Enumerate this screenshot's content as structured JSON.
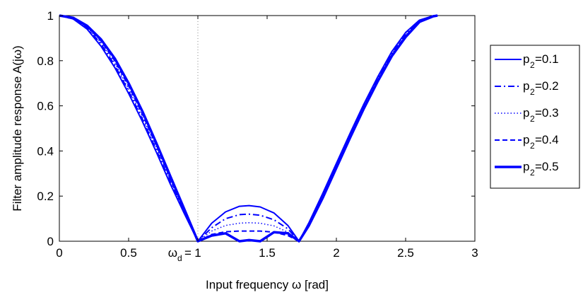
{
  "chart_data": {
    "type": "line",
    "xlabel": "Input frequency ω [rad]",
    "ylabel": "Filter amplitude response A(jω)",
    "xlim": [
      0,
      3
    ],
    "ylim": [
      0,
      1
    ],
    "xticks": [
      "0",
      "0.5",
      "1",
      "1.5",
      "2",
      "2.5",
      "3"
    ],
    "yticks": [
      "0",
      "0.2",
      "0.4",
      "0.6",
      "0.8",
      "1"
    ],
    "grid": false,
    "legend_position": "outside-right",
    "annotations": [
      {
        "text": "ω",
        "subscript": "d",
        "suffix": "=",
        "x": 1,
        "label_for_tick": "1"
      }
    ],
    "reference_line": {
      "x": 1,
      "style": "dotted"
    },
    "color": "#0000ff",
    "series": [
      {
        "name": "p2=0.1",
        "legend_main": "p",
        "legend_sub": "2",
        "legend_suffix": "=0.1",
        "style": "solid",
        "width": 2,
        "x": [
          0,
          0.1,
          0.2,
          0.3,
          0.4,
          0.5,
          0.6,
          0.7,
          0.8,
          0.9,
          1.0,
          1.1,
          1.2,
          1.3,
          1.37,
          1.45,
          1.55,
          1.65,
          1.73,
          1.8,
          1.9,
          2.0,
          2.1,
          2.2,
          2.3,
          2.4,
          2.5,
          2.6,
          2.7,
          2.73
        ],
        "y": [
          1.0,
          0.985,
          0.94,
          0.865,
          0.77,
          0.655,
          0.53,
          0.395,
          0.255,
          0.125,
          0.0,
          0.08,
          0.13,
          0.155,
          0.158,
          0.152,
          0.125,
          0.07,
          0.0,
          0.08,
          0.21,
          0.345,
          0.48,
          0.61,
          0.73,
          0.84,
          0.925,
          0.98,
          0.999,
          1.0
        ]
      },
      {
        "name": "p2=0.2",
        "legend_main": "p",
        "legend_sub": "2",
        "legend_suffix": "=0.2",
        "style": "dashdot",
        "width": 2,
        "x": [
          0,
          0.1,
          0.2,
          0.3,
          0.4,
          0.5,
          0.6,
          0.7,
          0.8,
          0.9,
          1.0,
          1.1,
          1.2,
          1.3,
          1.37,
          1.45,
          1.55,
          1.65,
          1.73,
          1.8,
          1.9,
          2.0,
          2.1,
          2.2,
          2.3,
          2.4,
          2.5,
          2.6,
          2.7,
          2.73
        ],
        "y": [
          1.0,
          0.985,
          0.945,
          0.875,
          0.78,
          0.665,
          0.54,
          0.405,
          0.265,
          0.13,
          0.0,
          0.06,
          0.1,
          0.118,
          0.12,
          0.115,
          0.095,
          0.055,
          0.0,
          0.075,
          0.205,
          0.34,
          0.475,
          0.605,
          0.725,
          0.835,
          0.92,
          0.978,
          0.999,
          1.0
        ]
      },
      {
        "name": "p2=0.3",
        "legend_main": "p",
        "legend_sub": "2",
        "legend_suffix": "=0.3",
        "style": "dotted",
        "width": 1.5,
        "x": [
          0,
          0.1,
          0.2,
          0.3,
          0.4,
          0.5,
          0.6,
          0.7,
          0.8,
          0.9,
          1.0,
          1.1,
          1.2,
          1.3,
          1.37,
          1.45,
          1.55,
          1.65,
          1.73,
          1.8,
          1.9,
          2.0,
          2.1,
          2.2,
          2.3,
          2.4,
          2.5,
          2.6,
          2.7,
          2.73
        ],
        "y": [
          1.0,
          0.987,
          0.948,
          0.88,
          0.79,
          0.675,
          0.55,
          0.415,
          0.272,
          0.135,
          0.0,
          0.045,
          0.07,
          0.08,
          0.082,
          0.08,
          0.068,
          0.04,
          0.0,
          0.072,
          0.2,
          0.335,
          0.47,
          0.6,
          0.72,
          0.83,
          0.915,
          0.976,
          0.998,
          1.0
        ]
      },
      {
        "name": "p2=0.4",
        "legend_main": "p",
        "legend_sub": "2",
        "legend_suffix": "=0.4",
        "style": "dashed",
        "width": 2,
        "x": [
          0,
          0.1,
          0.2,
          0.3,
          0.4,
          0.5,
          0.6,
          0.7,
          0.8,
          0.9,
          1.0,
          1.1,
          1.2,
          1.3,
          1.37,
          1.45,
          1.55,
          1.65,
          1.73,
          1.8,
          1.9,
          2.0,
          2.1,
          2.2,
          2.3,
          2.4,
          2.5,
          2.6,
          2.7,
          2.73
        ],
        "y": [
          1.0,
          0.988,
          0.952,
          0.888,
          0.8,
          0.688,
          0.562,
          0.425,
          0.28,
          0.14,
          0.0,
          0.03,
          0.042,
          0.045,
          0.045,
          0.045,
          0.04,
          0.025,
          0.0,
          0.07,
          0.195,
          0.33,
          0.465,
          0.595,
          0.715,
          0.825,
          0.91,
          0.974,
          0.998,
          1.0
        ]
      },
      {
        "name": "p2=0.5",
        "legend_main": "p",
        "legend_sub": "2",
        "legend_suffix": "=0.5",
        "style": "solid",
        "width": 3.5,
        "x": [
          0,
          0.1,
          0.2,
          0.3,
          0.4,
          0.5,
          0.6,
          0.7,
          0.8,
          0.9,
          1.0,
          1.1,
          1.2,
          1.3,
          1.37,
          1.45,
          1.55,
          1.65,
          1.73,
          1.8,
          1.9,
          2.0,
          2.1,
          2.2,
          2.3,
          2.4,
          2.5,
          2.6,
          2.7,
          2.73
        ],
        "y": [
          1.0,
          0.99,
          0.955,
          0.895,
          0.81,
          0.7,
          0.575,
          0.435,
          0.29,
          0.145,
          0.0,
          0.025,
          0.035,
          0.0,
          0.005,
          0.0,
          0.04,
          0.035,
          0.0,
          0.068,
          0.19,
          0.325,
          0.46,
          0.59,
          0.71,
          0.82,
          0.905,
          0.972,
          0.997,
          1.0
        ]
      }
    ]
  }
}
